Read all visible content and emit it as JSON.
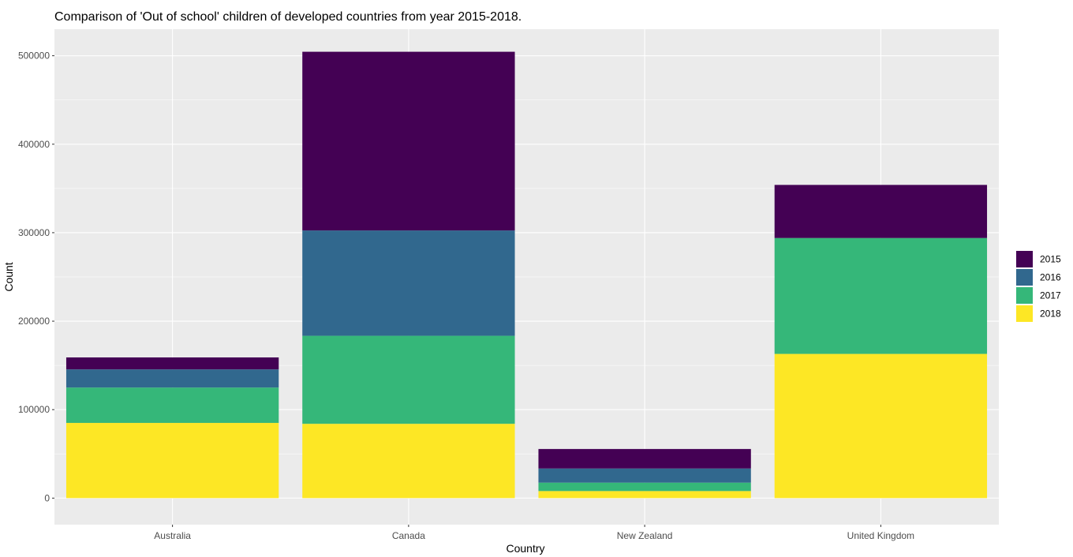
{
  "chart_data": {
    "type": "bar",
    "stacked": true,
    "title": "Comparison of 'Out of school' children of developed countries from year 2015-2018.",
    "xlabel": "Country",
    "ylabel": "Count",
    "categories": [
      "Australia",
      "Canada",
      "New Zealand",
      "United Kingdom"
    ],
    "series": [
      {
        "name": "2015",
        "color": "#440154",
        "values": [
          13500,
          202000,
          22000,
          60000
        ]
      },
      {
        "name": "2016",
        "color": "#31688E",
        "values": [
          20500,
          119000,
          16000,
          0
        ]
      },
      {
        "name": "2017",
        "color": "#35B779",
        "values": [
          40000,
          99500,
          9500,
          131000
        ]
      },
      {
        "name": "2018",
        "color": "#FDE725",
        "values": [
          85000,
          84000,
          8000,
          163000
        ]
      }
    ],
    "stack_order_bottom_to_top": [
      "2018",
      "2017",
      "2016",
      "2015"
    ],
    "ylim": [
      -30000,
      530000
    ],
    "yticks": [
      0,
      100000,
      200000,
      300000,
      400000,
      500000
    ],
    "ytick_labels": [
      "0",
      "100000",
      "200000",
      "300000",
      "400000",
      "500000"
    ],
    "grid": true,
    "panel_background": "#EBEBEB",
    "legend_position": "right",
    "legend_title": ""
  }
}
